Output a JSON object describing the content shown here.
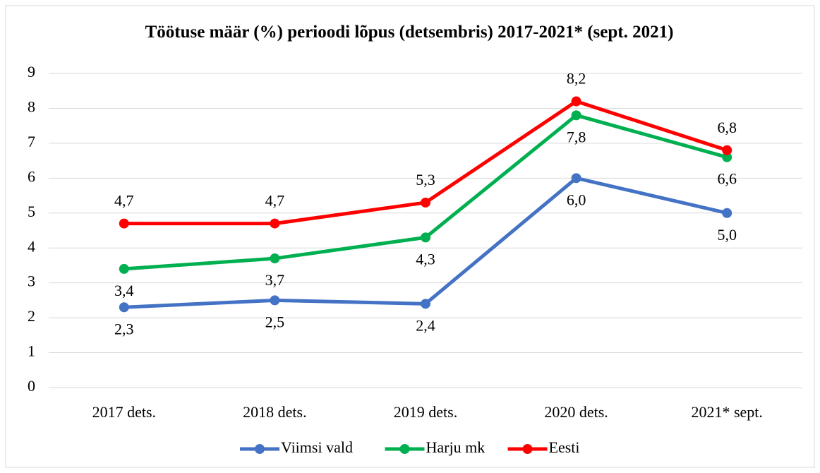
{
  "chart_data": {
    "type": "line",
    "title": "Töötuse määr (%) perioodi lõpus (detsembris) 2017-2021* (sept. 2021)",
    "categories": [
      "2017 dets.",
      "2018 dets.",
      "2019 dets.",
      "2020 dets.",
      "2021* sept."
    ],
    "series": [
      {
        "name": "Viimsi vald",
        "color": "#4472c4",
        "values": [
          2.3,
          2.5,
          2.4,
          6.0,
          5.0
        ],
        "value_labels": [
          "2,3",
          "2,5",
          "2,4",
          "6,0",
          "5,0"
        ]
      },
      {
        "name": "Harju mk",
        "color": "#00b050",
        "values": [
          3.4,
          3.7,
          4.3,
          7.8,
          6.6
        ],
        "value_labels": [
          "3,4",
          "3,7",
          "4,3",
          "7,8",
          "6,6"
        ]
      },
      {
        "name": "Eesti",
        "color": "#ff0000",
        "values": [
          4.7,
          4.7,
          5.3,
          8.2,
          6.8
        ],
        "value_labels": [
          "4,7",
          "4,7",
          "5,3",
          "8,2",
          "6,8"
        ]
      }
    ],
    "ylim": [
      0,
      9
    ],
    "yticks": [
      0,
      1,
      2,
      3,
      4,
      5,
      6,
      7,
      8,
      9
    ],
    "grid": true,
    "legend": "bottom"
  }
}
